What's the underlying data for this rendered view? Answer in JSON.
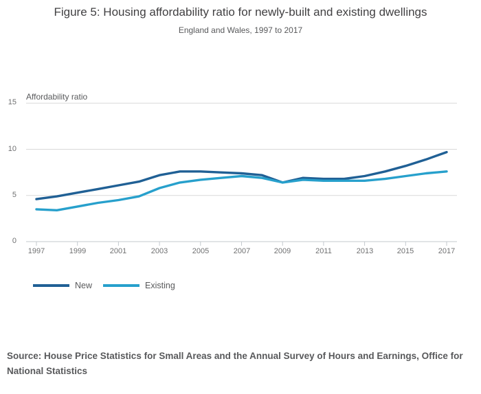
{
  "header": {
    "title": "Figure 5: Housing affordability ratio for newly-built and existing dwellings",
    "subtitle": "England and Wales, 1997 to 2017"
  },
  "chart_data": {
    "type": "line",
    "title": "Figure 5: Housing affordability ratio for newly-built and existing dwellings",
    "subtitle": "England and Wales, 1997 to 2017",
    "ylabel": "Affordability ratio",
    "xlabel": "",
    "ylim": [
      0,
      15
    ],
    "yticks": [
      0,
      5,
      10,
      15
    ],
    "xticks": [
      1997,
      1999,
      2001,
      2003,
      2005,
      2007,
      2009,
      2011,
      2013,
      2015,
      2017
    ],
    "grid": true,
    "legend_position": "bottom-left",
    "x": [
      1997,
      1998,
      1999,
      2000,
      2001,
      2002,
      2003,
      2004,
      2005,
      2006,
      2007,
      2008,
      2009,
      2010,
      2011,
      2012,
      2013,
      2014,
      2015,
      2016,
      2017
    ],
    "series": [
      {
        "name": "New",
        "color": "#206095",
        "values": [
          4.6,
          4.9,
          5.3,
          5.7,
          6.1,
          6.5,
          7.2,
          7.6,
          7.6,
          7.5,
          7.4,
          7.2,
          6.4,
          6.9,
          6.8,
          6.8,
          7.1,
          7.6,
          8.2,
          8.9,
          9.7
        ]
      },
      {
        "name": "Existing",
        "color": "#27a0cc",
        "values": [
          3.5,
          3.4,
          3.8,
          4.2,
          4.5,
          4.9,
          5.8,
          6.4,
          6.7,
          6.9,
          7.1,
          6.9,
          6.4,
          6.7,
          6.6,
          6.6,
          6.6,
          6.8,
          7.1,
          7.4,
          7.6
        ]
      }
    ]
  },
  "footer": {
    "source": "Source: House Price Statistics for Small Areas and the Annual Survey of Hours and Earnings, Office for National Statistics"
  },
  "colors": {
    "new_line": "#206095",
    "existing_line": "#27a0cc",
    "grid": "#d9d9d9",
    "axis": "#c3c9ce",
    "title_text": "#414042",
    "muted_text": "#58595b",
    "tick_text": "#6f7071"
  }
}
